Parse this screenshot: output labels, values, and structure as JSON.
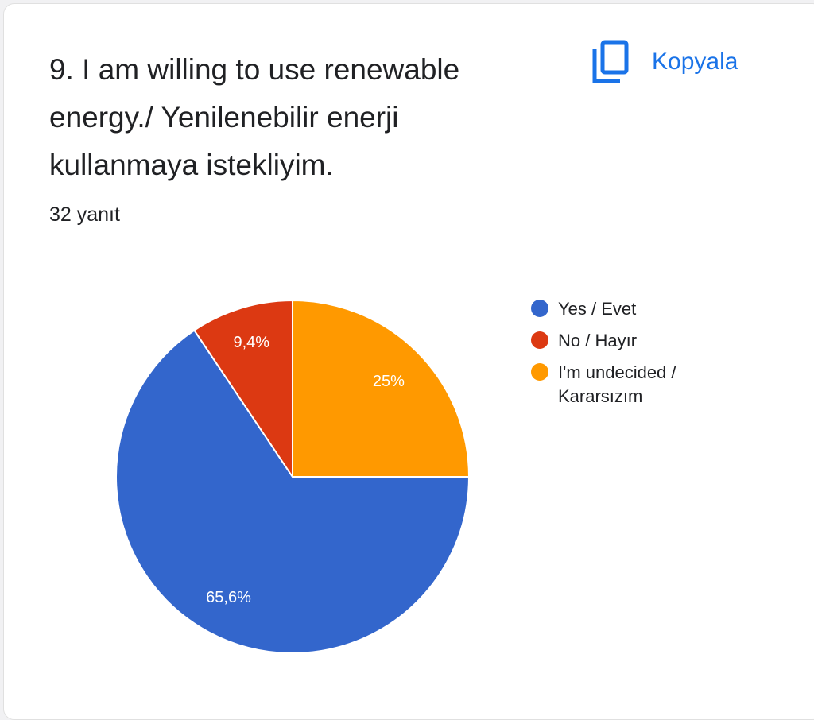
{
  "title": "9. I am willing to use renewable energy./ Yenilenebilir enerji kullanmaya istekliyim.",
  "response_count": "32 yanıt",
  "copy_button": {
    "label": "Kopyala",
    "icon": "copy-icon",
    "color": "#1a73e8"
  },
  "chart_data": {
    "type": "pie",
    "categories": [
      "Yes / Evet",
      "No / Hayır",
      "I'm undecided / Kararsızım"
    ],
    "values": [
      65.6,
      9.4,
      25
    ],
    "labels": [
      "65,6%",
      "9,4%",
      "25%"
    ],
    "colors": [
      "#3366cc",
      "#dc3912",
      "#ff9900"
    ],
    "legend_position": "right"
  }
}
